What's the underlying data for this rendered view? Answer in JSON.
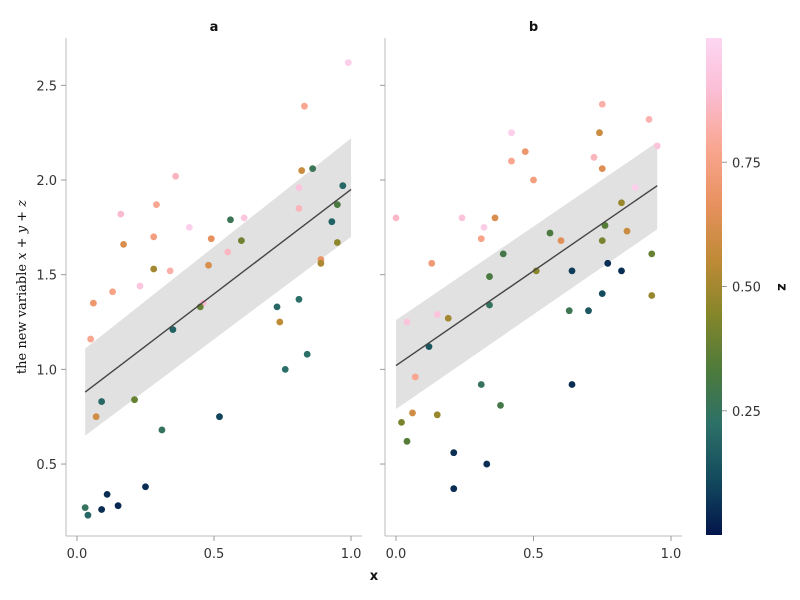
{
  "chart_data": {
    "type": "scatter",
    "xlabel": "x",
    "ylabel_prefix": "the new variable ",
    "ylabel_math": "x + y + z",
    "x_ticks": [
      "0.0",
      "0.5",
      "1.0"
    ],
    "y_ticks": [
      "0.5",
      "1.0",
      "1.5",
      "2.0",
      "2.5"
    ],
    "xlim": [
      -0.04,
      1.04
    ],
    "ylim": [
      0.12,
      2.75
    ],
    "colorbar": {
      "label": "z",
      "range": [
        0.0,
        1.0
      ],
      "ticks": [
        "0.25",
        "0.50",
        "0.75"
      ],
      "colormap": [
        "#02154c",
        "#134a5e",
        "#2c7068",
        "#4e7b3b",
        "#86862a",
        "#c08a37",
        "#e8915f",
        "#f9a690",
        "#fbbdd3",
        "#fdd6f3"
      ]
    },
    "panels": [
      {
        "title": "a",
        "regression": {
          "x": [
            0.03,
            1.0
          ],
          "y": [
            0.88,
            1.95
          ],
          "ci_low": [
            0.65,
            1.7
          ],
          "ci_high": [
            1.11,
            2.22
          ]
        },
        "points": [
          {
            "x": 0.99,
            "y": 2.62,
            "z": 0.97
          },
          {
            "x": 0.83,
            "y": 2.39,
            "z": 0.78
          },
          {
            "x": 0.82,
            "y": 2.05,
            "z": 0.58
          },
          {
            "x": 0.86,
            "y": 2.06,
            "z": 0.27
          },
          {
            "x": 0.81,
            "y": 1.96,
            "z": 0.92
          },
          {
            "x": 0.81,
            "y": 1.85,
            "z": 0.85
          },
          {
            "x": 0.97,
            "y": 1.97,
            "z": 0.2
          },
          {
            "x": 0.95,
            "y": 1.87,
            "z": 0.32
          },
          {
            "x": 0.93,
            "y": 1.78,
            "z": 0.18
          },
          {
            "x": 0.95,
            "y": 1.67,
            "z": 0.46
          },
          {
            "x": 0.89,
            "y": 1.58,
            "z": 0.68
          },
          {
            "x": 0.89,
            "y": 1.56,
            "z": 0.52
          },
          {
            "x": 0.36,
            "y": 2.02,
            "z": 0.85
          },
          {
            "x": 0.29,
            "y": 1.87,
            "z": 0.78
          },
          {
            "x": 0.16,
            "y": 1.82,
            "z": 0.88
          },
          {
            "x": 0.56,
            "y": 1.79,
            "z": 0.27
          },
          {
            "x": 0.61,
            "y": 1.8,
            "z": 0.93
          },
          {
            "x": 0.41,
            "y": 1.75,
            "z": 0.97
          },
          {
            "x": 0.28,
            "y": 1.7,
            "z": 0.74
          },
          {
            "x": 0.49,
            "y": 1.69,
            "z": 0.66
          },
          {
            "x": 0.17,
            "y": 1.66,
            "z": 0.62
          },
          {
            "x": 0.6,
            "y": 1.68,
            "z": 0.4
          },
          {
            "x": 0.55,
            "y": 1.62,
            "z": 0.86
          },
          {
            "x": 0.48,
            "y": 1.55,
            "z": 0.62
          },
          {
            "x": 0.28,
            "y": 1.53,
            "z": 0.5
          },
          {
            "x": 0.34,
            "y": 1.52,
            "z": 0.82
          },
          {
            "x": 0.23,
            "y": 1.44,
            "z": 0.93
          },
          {
            "x": 0.13,
            "y": 1.41,
            "z": 0.76
          },
          {
            "x": 0.06,
            "y": 1.35,
            "z": 0.7
          },
          {
            "x": 0.46,
            "y": 1.35,
            "z": 0.88
          },
          {
            "x": 0.45,
            "y": 1.33,
            "z": 0.38
          },
          {
            "x": 0.73,
            "y": 1.33,
            "z": 0.2
          },
          {
            "x": 0.81,
            "y": 1.37,
            "z": 0.22
          },
          {
            "x": 0.74,
            "y": 1.25,
            "z": 0.55
          },
          {
            "x": 0.35,
            "y": 1.21,
            "z": 0.18
          },
          {
            "x": 0.05,
            "y": 1.16,
            "z": 0.78
          },
          {
            "x": 0.84,
            "y": 1.08,
            "z": 0.22
          },
          {
            "x": 0.76,
            "y": 1.0,
            "z": 0.22
          },
          {
            "x": 0.09,
            "y": 0.83,
            "z": 0.2
          },
          {
            "x": 0.21,
            "y": 0.84,
            "z": 0.38
          },
          {
            "x": 0.07,
            "y": 0.75,
            "z": 0.6
          },
          {
            "x": 0.52,
            "y": 0.75,
            "z": 0.1
          },
          {
            "x": 0.31,
            "y": 0.68,
            "z": 0.25
          },
          {
            "x": 0.25,
            "y": 0.38,
            "z": 0.05
          },
          {
            "x": 0.03,
            "y": 0.27,
            "z": 0.25
          },
          {
            "x": 0.11,
            "y": 0.34,
            "z": 0.05
          },
          {
            "x": 0.15,
            "y": 0.28,
            "z": 0.04
          },
          {
            "x": 0.09,
            "y": 0.26,
            "z": 0.05
          },
          {
            "x": 0.04,
            "y": 0.23,
            "z": 0.2
          }
        ]
      },
      {
        "title": "b",
        "regression": {
          "x": [
            0.0,
            0.95
          ],
          "y": [
            1.02,
            1.97
          ],
          "ci_low": [
            0.79,
            1.74
          ],
          "ci_high": [
            1.26,
            2.2
          ]
        },
        "points": [
          {
            "x": 0.75,
            "y": 2.4,
            "z": 0.82
          },
          {
            "x": 0.92,
            "y": 2.32,
            "z": 0.83
          },
          {
            "x": 0.42,
            "y": 2.25,
            "z": 0.97
          },
          {
            "x": 0.74,
            "y": 2.25,
            "z": 0.58
          },
          {
            "x": 0.47,
            "y": 2.15,
            "z": 0.7
          },
          {
            "x": 0.95,
            "y": 2.18,
            "z": 0.92
          },
          {
            "x": 0.72,
            "y": 2.12,
            "z": 0.85
          },
          {
            "x": 0.42,
            "y": 2.1,
            "z": 0.78
          },
          {
            "x": 0.75,
            "y": 2.06,
            "z": 0.64
          },
          {
            "x": 0.5,
            "y": 2.0,
            "z": 0.74
          },
          {
            "x": 0.87,
            "y": 1.96,
            "z": 0.97
          },
          {
            "x": 0.82,
            "y": 1.88,
            "z": 0.48
          },
          {
            "x": 0.0,
            "y": 1.8,
            "z": 0.87
          },
          {
            "x": 0.24,
            "y": 1.8,
            "z": 0.92
          },
          {
            "x": 0.36,
            "y": 1.8,
            "z": 0.62
          },
          {
            "x": 0.32,
            "y": 1.75,
            "z": 0.96
          },
          {
            "x": 0.76,
            "y": 1.76,
            "z": 0.35
          },
          {
            "x": 0.56,
            "y": 1.72,
            "z": 0.32
          },
          {
            "x": 0.84,
            "y": 1.73,
            "z": 0.58
          },
          {
            "x": 0.31,
            "y": 1.69,
            "z": 0.76
          },
          {
            "x": 0.6,
            "y": 1.68,
            "z": 0.65
          },
          {
            "x": 0.75,
            "y": 1.68,
            "z": 0.42
          },
          {
            "x": 0.39,
            "y": 1.61,
            "z": 0.3
          },
          {
            "x": 0.93,
            "y": 1.61,
            "z": 0.38
          },
          {
            "x": 0.13,
            "y": 1.56,
            "z": 0.72
          },
          {
            "x": 0.77,
            "y": 1.56,
            "z": 0.05
          },
          {
            "x": 0.82,
            "y": 1.52,
            "z": 0.05
          },
          {
            "x": 0.64,
            "y": 1.52,
            "z": 0.08
          },
          {
            "x": 0.51,
            "y": 1.52,
            "z": 0.45
          },
          {
            "x": 0.34,
            "y": 1.49,
            "z": 0.32
          },
          {
            "x": 0.75,
            "y": 1.4,
            "z": 0.12
          },
          {
            "x": 0.93,
            "y": 1.39,
            "z": 0.48
          },
          {
            "x": 0.34,
            "y": 1.34,
            "z": 0.25
          },
          {
            "x": 0.63,
            "y": 1.31,
            "z": 0.28
          },
          {
            "x": 0.7,
            "y": 1.31,
            "z": 0.15
          },
          {
            "x": 0.15,
            "y": 1.29,
            "z": 0.92
          },
          {
            "x": 0.19,
            "y": 1.27,
            "z": 0.5
          },
          {
            "x": 0.04,
            "y": 1.25,
            "z": 0.92
          },
          {
            "x": 0.12,
            "y": 1.12,
            "z": 0.15
          },
          {
            "x": 0.07,
            "y": 0.96,
            "z": 0.78
          },
          {
            "x": 0.31,
            "y": 0.92,
            "z": 0.25
          },
          {
            "x": 0.64,
            "y": 0.92,
            "z": 0.05
          },
          {
            "x": 0.38,
            "y": 0.81,
            "z": 0.3
          },
          {
            "x": 0.06,
            "y": 0.77,
            "z": 0.6
          },
          {
            "x": 0.15,
            "y": 0.76,
            "z": 0.48
          },
          {
            "x": 0.02,
            "y": 0.72,
            "z": 0.42
          },
          {
            "x": 0.04,
            "y": 0.62,
            "z": 0.35
          },
          {
            "x": 0.21,
            "y": 0.56,
            "z": 0.05
          },
          {
            "x": 0.33,
            "y": 0.5,
            "z": 0.05
          },
          {
            "x": 0.21,
            "y": 0.37,
            "z": 0.05
          }
        ]
      }
    ]
  }
}
